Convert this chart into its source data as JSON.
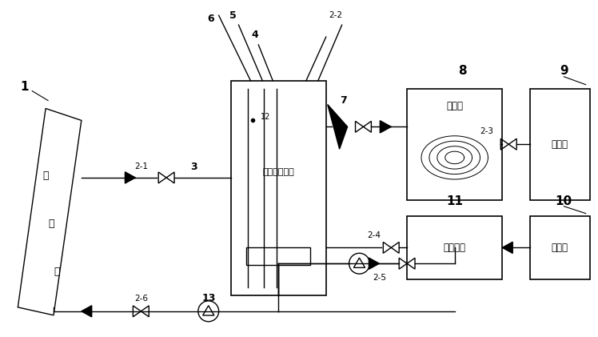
{
  "bg_color": "#ffffff",
  "line_color": "#000000",
  "fig_width": 7.48,
  "fig_height": 4.21,
  "dpi": 100,
  "sealed_tank_label": "密封透明水桶",
  "condenser_label": "冷凝管",
  "fresh_water_label": "淡水池",
  "hot_brine_label": "燭浓盐水",
  "salt_water_label": "盐水池",
  "collector_char1": "集",
  "collector_char2": "热",
  "collector_char3": "器"
}
